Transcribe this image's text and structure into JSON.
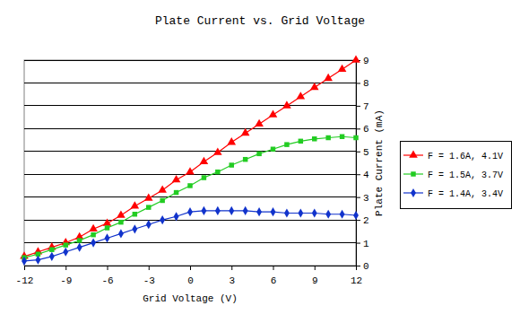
{
  "chart_data": {
    "type": "line",
    "title": "Plate Current vs. Grid Voltage",
    "x_label": "Grid Voltage (V)",
    "y_label": "Plate Current (mA)",
    "x": [
      -12,
      -11,
      -10,
      -9,
      -8,
      -7,
      -6,
      -5,
      -4,
      -3,
      -2,
      -1,
      0,
      1,
      2,
      3,
      4,
      5,
      6,
      7,
      8,
      9,
      10,
      11,
      12
    ],
    "series": [
      {
        "name": "F = 1.6A, 4.1V",
        "color": "#ff0000",
        "marker": "triangle",
        "values": [
          0.4,
          0.6,
          0.8,
          1.0,
          1.25,
          1.6,
          1.85,
          2.2,
          2.6,
          2.95,
          3.3,
          3.75,
          4.1,
          4.55,
          4.95,
          5.4,
          5.8,
          6.2,
          6.6,
          7.0,
          7.4,
          7.8,
          8.2,
          8.6,
          9.0
        ]
      },
      {
        "name": "F = 1.5A, 3.7V",
        "color": "#22cc22",
        "marker": "square",
        "values": [
          0.35,
          0.5,
          0.7,
          0.9,
          1.1,
          1.35,
          1.65,
          1.9,
          2.25,
          2.55,
          2.85,
          3.2,
          3.5,
          3.85,
          4.1,
          4.4,
          4.65,
          4.9,
          5.1,
          5.3,
          5.45,
          5.55,
          5.6,
          5.65,
          5.6
        ]
      },
      {
        "name": "F = 1.4A, 3.4V",
        "color": "#1133cc",
        "marker": "diamond",
        "values": [
          0.2,
          0.25,
          0.4,
          0.6,
          0.8,
          1.0,
          1.2,
          1.4,
          1.6,
          1.8,
          2.0,
          2.15,
          2.35,
          2.4,
          2.4,
          2.4,
          2.4,
          2.35,
          2.35,
          2.3,
          2.3,
          2.3,
          2.25,
          2.25,
          2.2
        ]
      }
    ],
    "xlim": [
      -12,
      12
    ],
    "xticks": [
      -12,
      -9,
      -6,
      -3,
      0,
      3,
      6,
      9,
      12
    ],
    "ylim": [
      0,
      9
    ],
    "yticks": [
      0,
      1,
      2,
      3,
      4,
      5,
      6,
      7,
      8,
      9
    ],
    "grid": true,
    "legend": "right"
  }
}
